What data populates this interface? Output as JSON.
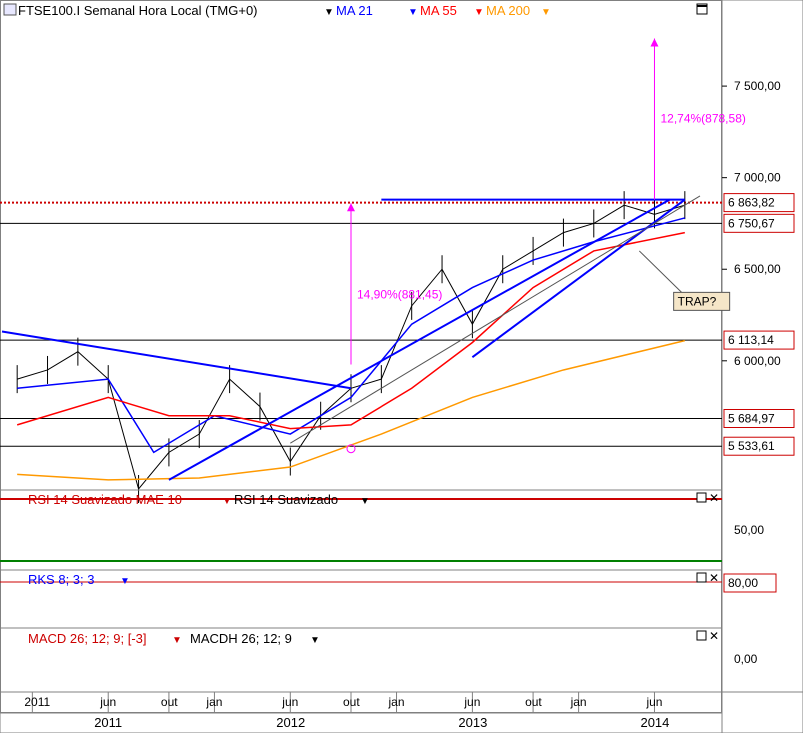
{
  "header": {
    "instrument": "FTSE100.I Semanal Hora Local (TMG+0)",
    "ma21": "MA 21",
    "ma55": "MA 55",
    "ma200": "MA 200"
  },
  "colors": {
    "ma21": "#0000ff",
    "ma55": "#ff0000",
    "ma200": "#ff9900",
    "annotation": "#ff00ff",
    "price_bars": "#000000",
    "trendline": "#0000ff",
    "level_line": "#000000",
    "resistance_dotted": "#cc0000",
    "rsi_upper": "#cc0000",
    "rsi_lower": "#008000"
  },
  "annotations": {
    "target_pct": "12,74%(878,58)",
    "measured_pct": "14,90%(881,45)",
    "trap_label": "TRAP?"
  },
  "price_levels": [
    {
      "label": "6 863,82",
      "value": 6863.82
    },
    {
      "label": "6 750,67",
      "value": 6750.67
    },
    {
      "label": "6 113,14",
      "value": 6113.14
    },
    {
      "label": "5 684,97",
      "value": 5684.97
    },
    {
      "label": "5 533,61",
      "value": 5533.61
    }
  ],
  "price_axis_ticks": [
    {
      "label": "7 500,00",
      "value": 7500
    },
    {
      "label": "7 000,00",
      "value": 7000
    },
    {
      "label": "6 500,00",
      "value": 6500
    },
    {
      "label": "6 000,00",
      "value": 6000
    }
  ],
  "rsi_panel": {
    "title_smoothed": "RSI 14 Suavizado MAE 10",
    "title_rsi": "RSI 14 Suavizado",
    "tick": "50,00"
  },
  "rks_panel": {
    "title": "RKS 8; 3; 3",
    "tick": "80,00"
  },
  "macd_panel": {
    "title_macd": "MACD 26; 12; 9; [-3]",
    "title_hist": "MACDH 26; 12; 9",
    "tick": "0,00"
  },
  "time_axis": {
    "months": [
      {
        "label": "2011",
        "date": "2011-01"
      },
      {
        "label": "jun",
        "date": "2011-06"
      },
      {
        "label": "out",
        "date": "2011-10"
      },
      {
        "label": "jan",
        "date": "2012-01"
      },
      {
        "label": "jun",
        "date": "2012-06"
      },
      {
        "label": "out",
        "date": "2012-10"
      },
      {
        "label": "jan",
        "date": "2013-01"
      },
      {
        "label": "jun",
        "date": "2013-06"
      },
      {
        "label": "out",
        "date": "2013-10"
      },
      {
        "label": "jan",
        "date": "2014-01"
      },
      {
        "label": "jun",
        "date": "2014-06"
      }
    ],
    "years": [
      {
        "label": "2011",
        "date": "2011-06"
      },
      {
        "label": "2012",
        "date": "2012-06"
      },
      {
        "label": "2013",
        "date": "2013-06"
      },
      {
        "label": "2014",
        "date": "2014-06"
      }
    ]
  },
  "chart_data": {
    "type": "line",
    "title": "FTSE100.I Semanal Hora Local (TMG+0)",
    "xlabel": "",
    "ylabel": "",
    "ylim": [
      5300,
      7850
    ],
    "grid": false,
    "x_range": [
      "2010-11",
      "2014-09"
    ],
    "series": [
      {
        "name": "FTSE100.I",
        "x": [
          "2010-12",
          "2011-02",
          "2011-04",
          "2011-06",
          "2011-08",
          "2011-10",
          "2011-12",
          "2012-02",
          "2012-04",
          "2012-06",
          "2012-08",
          "2012-10",
          "2012-12",
          "2013-02",
          "2013-04",
          "2013-06",
          "2013-08",
          "2013-10",
          "2013-12",
          "2014-02",
          "2014-04",
          "2014-06",
          "2014-08"
        ],
        "values": [
          5900,
          5950,
          6050,
          5900,
          5300,
          5500,
          5600,
          5900,
          5750,
          5450,
          5700,
          5850,
          5900,
          6300,
          6500,
          6200,
          6500,
          6600,
          6700,
          6750,
          6850,
          6800,
          6850
        ]
      },
      {
        "name": "MA 21",
        "x": [
          "2010-12",
          "2011-06",
          "2011-09",
          "2012-01",
          "2012-06",
          "2012-10",
          "2013-02",
          "2013-06",
          "2013-10",
          "2014-02",
          "2014-08"
        ],
        "values": [
          5850,
          5900,
          5500,
          5700,
          5600,
          5800,
          6200,
          6400,
          6550,
          6650,
          6780
        ]
      },
      {
        "name": "MA 55",
        "x": [
          "2010-12",
          "2011-06",
          "2011-10",
          "2012-02",
          "2012-06",
          "2012-10",
          "2013-02",
          "2013-06",
          "2013-10",
          "2014-02",
          "2014-08"
        ],
        "values": [
          5650,
          5800,
          5700,
          5700,
          5630,
          5650,
          5850,
          6100,
          6400,
          6600,
          6700
        ]
      },
      {
        "name": "MA 200",
        "x": [
          "2010-12",
          "2011-06",
          "2011-12",
          "2012-06",
          "2012-12",
          "2013-06",
          "2013-12",
          "2014-08"
        ],
        "values": [
          5380,
          5350,
          5360,
          5420,
          5600,
          5800,
          5950,
          6110
        ]
      }
    ]
  }
}
